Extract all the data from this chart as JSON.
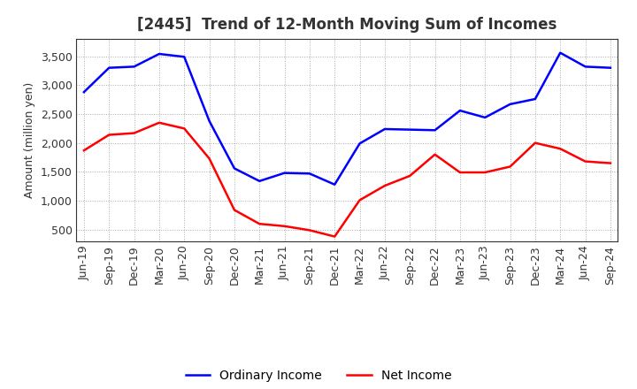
{
  "title": "[2445]  Trend of 12-Month Moving Sum of Incomes",
  "ylabel": "Amount (million yen)",
  "x_labels": [
    "Jun-19",
    "Sep-19",
    "Dec-19",
    "Mar-20",
    "Jun-20",
    "Sep-20",
    "Dec-20",
    "Mar-21",
    "Jun-21",
    "Sep-21",
    "Dec-21",
    "Mar-22",
    "Jun-22",
    "Sep-22",
    "Dec-22",
    "Mar-23",
    "Jun-23",
    "Sep-23",
    "Dec-23",
    "Mar-24",
    "Jun-24",
    "Sep-24"
  ],
  "ordinary_income": [
    2880,
    3300,
    3320,
    3540,
    3490,
    2380,
    1560,
    1340,
    1480,
    1470,
    1280,
    1990,
    2240,
    2230,
    2220,
    2560,
    2440,
    2670,
    2760,
    3560,
    3320,
    3300
  ],
  "net_income": [
    1870,
    2140,
    2170,
    2350,
    2250,
    1730,
    840,
    600,
    560,
    490,
    380,
    1010,
    1260,
    1430,
    1800,
    1490,
    1490,
    1590,
    2000,
    1900,
    1680,
    1650
  ],
  "ordinary_color": "#0000ff",
  "net_color": "#ff0000",
  "ylim": [
    300,
    3800
  ],
  "yticks": [
    500,
    1000,
    1500,
    2000,
    2500,
    3000,
    3500
  ],
  "background_color": "#ffffff",
  "grid_color": "#aaaaaa",
  "title_fontsize": 12,
  "axis_fontsize": 9,
  "tick_fontsize": 9,
  "title_color": "#333333",
  "legend_fontsize": 10
}
